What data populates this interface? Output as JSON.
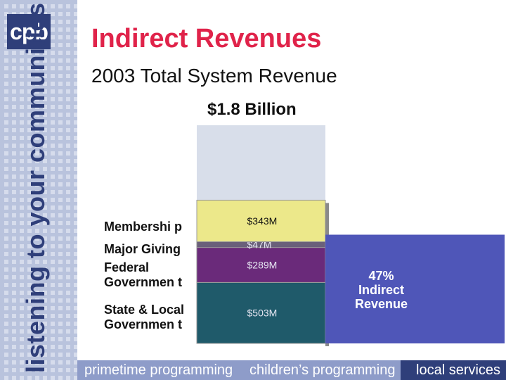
{
  "logo": {
    "text": "cpb"
  },
  "tagline": "listening to your communities",
  "header": {
    "title": "Indirect Revenues",
    "subtitle": "2003 Total System Revenue"
  },
  "bottom_nav": {
    "items": [
      "primetime programming",
      "children’s programming",
      "local services"
    ]
  },
  "colors": {
    "accent_title": "#e0234a",
    "brand_navy": "#2f3f7a",
    "bottom_bar": "#8e9cc9",
    "left_band": "#b9c3dd",
    "callout_fill": "#4f56b8"
  },
  "chart_data": {
    "type": "bar",
    "title": "$1.8 Billion",
    "stacked": true,
    "total_label": "$1.8 Billion",
    "series": [
      {
        "name": "State & Local Government",
        "value": 503,
        "label": "$503M",
        "color": "#1f5a6a"
      },
      {
        "name": "Federal Government",
        "value": 289,
        "label": "$289M",
        "color": "#6a2a7a"
      },
      {
        "name": "Major Giving",
        "value": 47,
        "label": "$47M",
        "color": "#6a607a"
      },
      {
        "name": "Membership",
        "value": 343,
        "label": "$343M",
        "color": "#ece88a"
      }
    ],
    "remaining_color": "#d8deea",
    "callout": {
      "percent": "47%",
      "line1": "Indirect",
      "line2": "Revenue"
    }
  },
  "labels": {
    "membership": "Membershi p",
    "major": "Major Giving",
    "federal": "Federal Governmen t",
    "state": "State & Local Governmen t"
  }
}
